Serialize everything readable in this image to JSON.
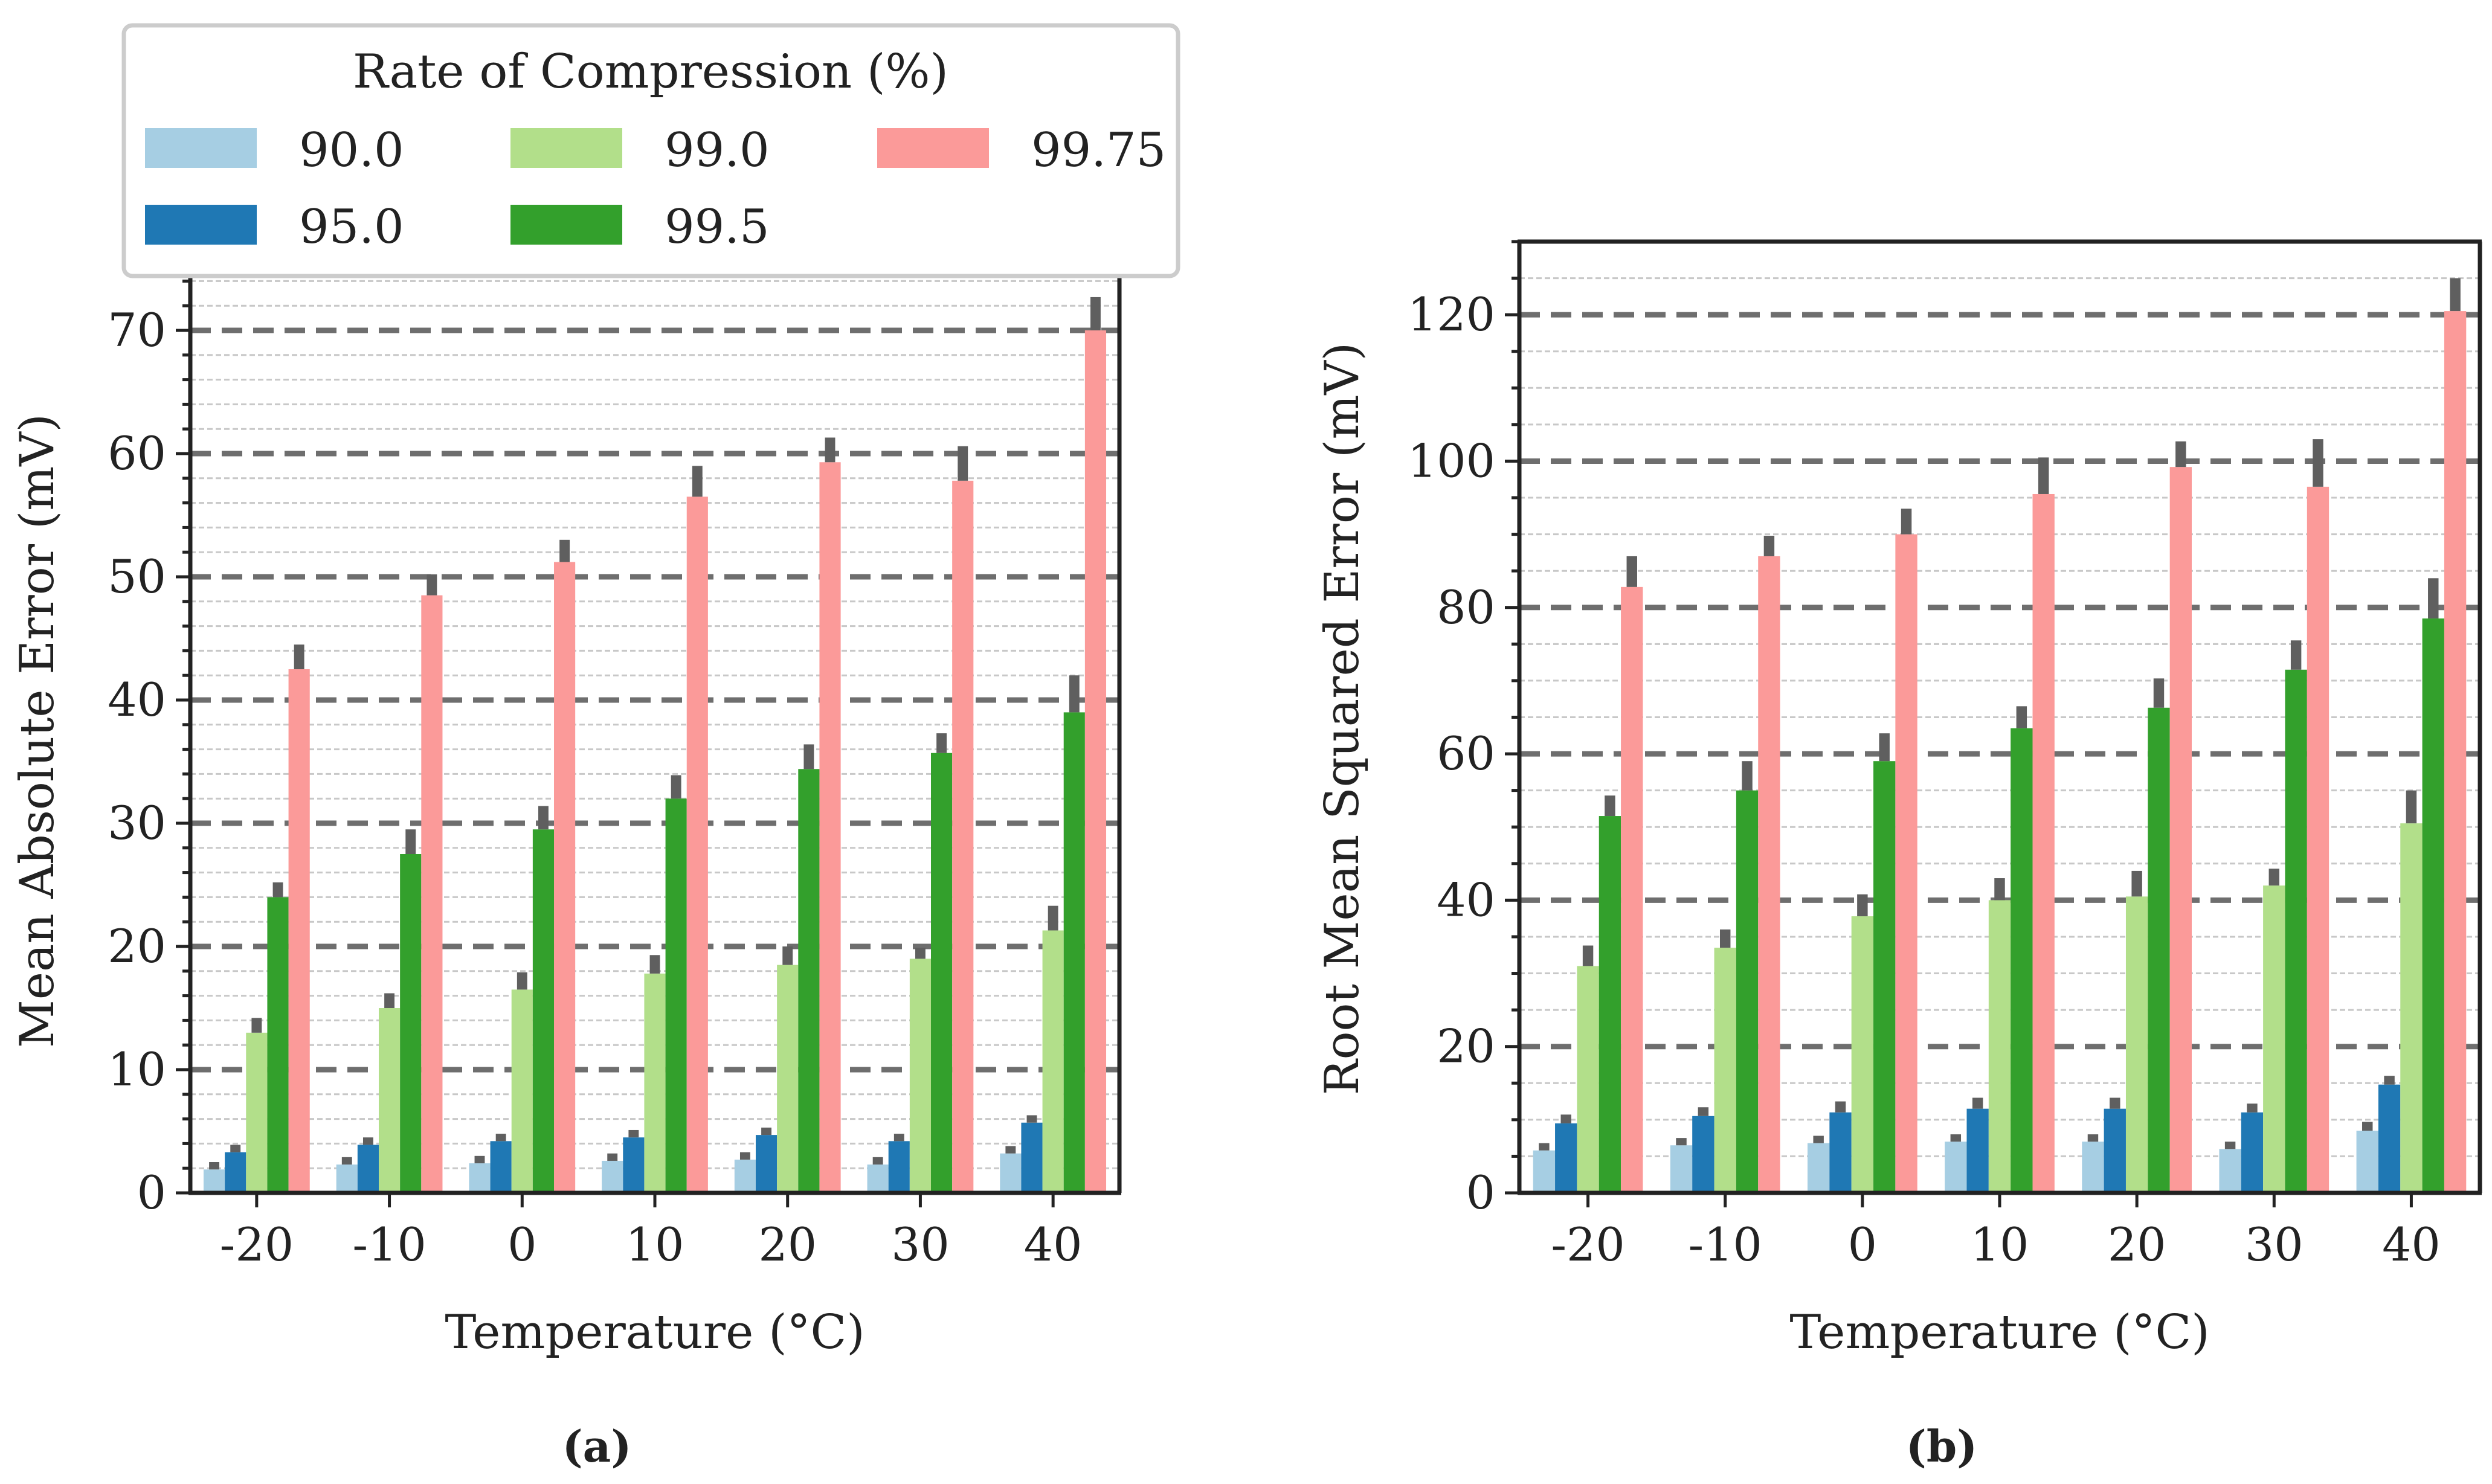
{
  "legend": {
    "title": "Rate of Compression (%)",
    "entries": [
      {
        "label": "90.0",
        "color": "#a6cee3"
      },
      {
        "label": "95.0",
        "color": "#1f78b4"
      },
      {
        "label": "99.0",
        "color": "#b2df8a"
      },
      {
        "label": "99.5",
        "color": "#33a02c"
      },
      {
        "label": "99.75",
        "color": "#fb9a99"
      }
    ]
  },
  "colors": {
    "errorbar": "#5f5f5f",
    "major_grid": "#6e6e6e",
    "minor_grid": "#c8c8c8",
    "axis": "#222222",
    "legend_border": "#cccccc"
  },
  "chart_data": [
    {
      "type": "bar",
      "panel_label": "(a)",
      "xlabel": "Temperature (°C)",
      "ylabel": "Mean Absolute Error (mV)",
      "categories": [
        "-20",
        "-10",
        "0",
        "10",
        "20",
        "30",
        "40"
      ],
      "ylim": [
        0,
        75
      ],
      "yticks": [
        0,
        10,
        20,
        30,
        40,
        50,
        60,
        70
      ],
      "major_grid_step": 10,
      "minor_grid_step": 2,
      "series": [
        {
          "name": "90.0",
          "values": [
            1.9,
            2.3,
            2.4,
            2.6,
            2.7,
            2.3,
            3.2
          ],
          "err": [
            0.6,
            0.6,
            0.6,
            0.6,
            0.6,
            0.6,
            0.6
          ]
        },
        {
          "name": "95.0",
          "values": [
            3.3,
            3.9,
            4.2,
            4.5,
            4.7,
            4.2,
            5.7
          ],
          "err": [
            0.6,
            0.6,
            0.6,
            0.6,
            0.6,
            0.6,
            0.6
          ]
        },
        {
          "name": "99.0",
          "values": [
            13.0,
            15.0,
            16.5,
            17.8,
            18.5,
            19.0,
            21.3
          ],
          "err": [
            1.2,
            1.2,
            1.4,
            1.5,
            1.5,
            0.9,
            2.0
          ]
        },
        {
          "name": "99.5",
          "values": [
            24.0,
            27.5,
            29.5,
            32.0,
            34.4,
            35.7,
            39.0
          ],
          "err": [
            1.2,
            2.0,
            1.9,
            1.9,
            2.0,
            1.6,
            3.0
          ]
        },
        {
          "name": "99.75",
          "values": [
            42.5,
            48.5,
            51.2,
            56.5,
            59.3,
            57.8,
            70.0
          ],
          "err": [
            2.0,
            1.7,
            1.8,
            2.5,
            2.0,
            2.8,
            2.7
          ]
        }
      ]
    },
    {
      "type": "bar",
      "panel_label": "(b)",
      "xlabel": "Temperature (°C)",
      "ylabel": "Root Mean Squared Error (mV)",
      "categories": [
        "-20",
        "-10",
        "0",
        "10",
        "20",
        "30",
        "40"
      ],
      "ylim": [
        0,
        130
      ],
      "yticks": [
        0,
        20,
        40,
        60,
        80,
        100,
        120
      ],
      "major_grid_step": 20,
      "minor_grid_step": 5,
      "series": [
        {
          "name": "90.0",
          "values": [
            5.8,
            6.5,
            6.8,
            7.0,
            7.0,
            6.0,
            8.5
          ],
          "err": [
            1.0,
            1.0,
            1.0,
            1.0,
            1.0,
            1.0,
            1.2
          ]
        },
        {
          "name": "95.0",
          "values": [
            9.5,
            10.5,
            11.0,
            11.5,
            11.5,
            11.0,
            14.8
          ],
          "err": [
            1.2,
            1.2,
            1.5,
            1.5,
            1.5,
            1.2,
            1.2
          ]
        },
        {
          "name": "99.0",
          "values": [
            31.0,
            33.5,
            37.8,
            40.0,
            40.5,
            42.0,
            50.5
          ],
          "err": [
            2.8,
            2.5,
            3.0,
            3.0,
            3.5,
            2.3,
            4.5
          ]
        },
        {
          "name": "99.5",
          "values": [
            51.5,
            55.0,
            59.0,
            63.5,
            66.3,
            71.5,
            78.5
          ],
          "err": [
            2.8,
            4.0,
            3.8,
            3.0,
            4.0,
            4.0,
            5.5
          ]
        },
        {
          "name": "99.75",
          "values": [
            82.8,
            87.0,
            90.0,
            95.5,
            99.2,
            96.5,
            120.5
          ],
          "err": [
            4.2,
            2.8,
            3.5,
            5.0,
            3.5,
            6.5,
            4.5
          ]
        }
      ]
    }
  ]
}
